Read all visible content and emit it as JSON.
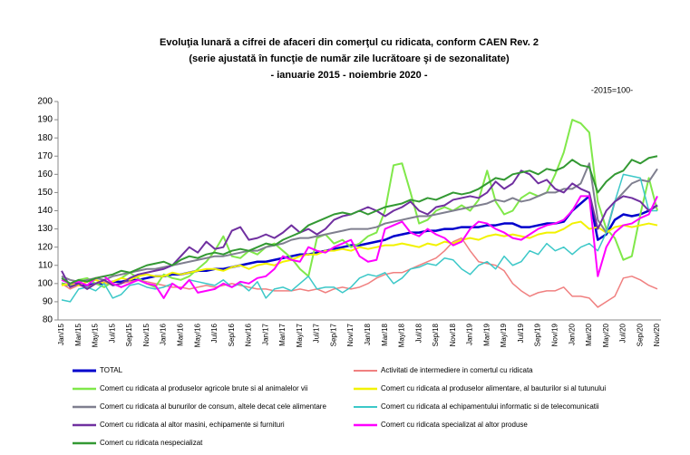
{
  "chart_data": {
    "type": "line",
    "title": [
      "Evoluţia lunară a cifrei de afaceri din comerţul cu ridicata,  conform CAEN Rev. 2",
      "(serie ajustată în funcţie de număr zile lucrătoare şi de sezonalitate)",
      "- ianuarie 2015 - noiembrie  2020  -"
    ],
    "note": "-2015=100-",
    "categories": [
      "Jan/15",
      null,
      "Mar/15",
      null,
      "May/15",
      null,
      "Jul/15",
      null,
      "Sep/15",
      null,
      "Nov/15",
      null,
      "Jan/16",
      null,
      "Mar/16",
      null,
      "May/16",
      null,
      "Jul/16",
      null,
      "Sep/16",
      null,
      "Nov/16",
      null,
      "Jan/17",
      null,
      "Mar/17",
      null,
      "May/17",
      null,
      "Jul/17",
      null,
      "Sep/17",
      null,
      "Nov/17",
      null,
      "Jan/18",
      null,
      "Mar/18",
      null,
      "May/18",
      null,
      "Jul/18",
      null,
      "Sep/18",
      null,
      "Nov/18",
      null,
      "Jan/19",
      null,
      "Mar/19",
      null,
      "May/19",
      null,
      "Jul/19",
      null,
      "Sep/19",
      null,
      "Nov/19",
      null,
      "Jan/20",
      null,
      "Mar/20",
      null,
      "May/20",
      null,
      "Jul/20",
      null,
      "Sep/20",
      null,
      "Nov/20"
    ],
    "ylim": [
      80,
      200
    ],
    "yticks": [
      80,
      90,
      100,
      110,
      120,
      130,
      140,
      150,
      160,
      170,
      180,
      190,
      200
    ],
    "series": [
      {
        "name": "TOTAL",
        "color": "#0000cc",
        "width": 2.5,
        "values": [
          100,
          99,
          100,
          99,
          100,
          100,
          101,
          101,
          102,
          102,
          103,
          104,
          104,
          105,
          105,
          106,
          107,
          107,
          108,
          108,
          109,
          110,
          111,
          112,
          112,
          113,
          114,
          115,
          116,
          116,
          117,
          118,
          119,
          120,
          121,
          121,
          122,
          123,
          124,
          126,
          127,
          128,
          128,
          129,
          129,
          130,
          130,
          131,
          131,
          131,
          132,
          132,
          133,
          133,
          131,
          131,
          132,
          133,
          133,
          134,
          140,
          144,
          148,
          124,
          127,
          135,
          138,
          137,
          138,
          140,
          143
        ]
      },
      {
        "name": "Activitati de intermediere in comertul cu ridicata",
        "color": "#f08080",
        "width": 1.5,
        "values": [
          100,
          97,
          99,
          98,
          100,
          101,
          99,
          100,
          101,
          102,
          101,
          100,
          99,
          98,
          98,
          97,
          98,
          99,
          98,
          99,
          100,
          99,
          98,
          97,
          97,
          96,
          96,
          96,
          97,
          96,
          97,
          95,
          97,
          98,
          97,
          98,
          100,
          103,
          105,
          106,
          106,
          108,
          110,
          112,
          114,
          118,
          123,
          125,
          118,
          112,
          111,
          110,
          107,
          100,
          96,
          93,
          95,
          96,
          96,
          98,
          93,
          93,
          92,
          87,
          90,
          93,
          103,
          104,
          102,
          99,
          97
        ]
      },
      {
        "name": "Comert cu ridicata al produselor agricole brute si al animalelor vii",
        "color": "#80e84a",
        "width": 2,
        "values": [
          100,
          99,
          102,
          103,
          100,
          98,
          101,
          103,
          106,
          103,
          100,
          98,
          105,
          103,
          102,
          104,
          108,
          112,
          118,
          126,
          115,
          114,
          118,
          116,
          120,
          122,
          118,
          114,
          108,
          104,
          125,
          127,
          122,
          124,
          120,
          122,
          126,
          128,
          140,
          165,
          166,
          150,
          133,
          135,
          140,
          142,
          140,
          143,
          140,
          146,
          162,
          145,
          138,
          140,
          147,
          150,
          148,
          150,
          160,
          172,
          190,
          188,
          183,
          145,
          130,
          125,
          113,
          115,
          138,
          158,
          140
        ]
      },
      {
        "name": "Comert cu ridicata al produselor alimentare, al bauturilor si al tutunului",
        "color": "#f2f200",
        "width": 2,
        "values": [
          99,
          100,
          99,
          101,
          102,
          100,
          101,
          103,
          102,
          104,
          105,
          104,
          104,
          106,
          105,
          106,
          107,
          108,
          108,
          107,
          109,
          110,
          108,
          110,
          111,
          110,
          112,
          113,
          115,
          116,
          116,
          118,
          118,
          119,
          118,
          120,
          119,
          120,
          121,
          121,
          122,
          121,
          120,
          122,
          121,
          123,
          122,
          124,
          125,
          124,
          126,
          127,
          126,
          127,
          126,
          125,
          127,
          128,
          128,
          130,
          133,
          134,
          130,
          131,
          128,
          131,
          132,
          131,
          132,
          133,
          132
        ]
      },
      {
        "name": "Comert cu ridicata al bunurilor de consum, altele decat cele alimentare",
        "color": "#7f7f8f",
        "width": 2,
        "values": [
          104,
          102,
          101,
          102,
          103,
          102,
          104,
          105,
          106,
          107,
          108,
          108,
          109,
          110,
          111,
          112,
          113,
          114,
          115,
          115,
          116,
          117,
          118,
          118,
          120,
          121,
          122,
          124,
          125,
          125,
          126,
          127,
          128,
          129,
          130,
          130,
          130,
          131,
          133,
          134,
          135,
          136,
          137,
          137,
          138,
          139,
          140,
          141,
          142,
          143,
          144,
          146,
          145,
          147,
          145,
          146,
          148,
          150,
          150,
          152,
          152,
          155,
          166,
          135,
          128,
          145,
          150,
          155,
          157,
          156,
          163
        ]
      },
      {
        "name": "Comert cu ridicata al echipamentului informatic si de telecomunicatii",
        "color": "#3cc8c8",
        "width": 1.5,
        "values": [
          91,
          90,
          97,
          98,
          96,
          100,
          92,
          94,
          99,
          100,
          98,
          97,
          98,
          100,
          97,
          102,
          101,
          100,
          99,
          102,
          98,
          100,
          96,
          101,
          92,
          97,
          98,
          96,
          100,
          104,
          97,
          98,
          98,
          95,
          98,
          103,
          105,
          104,
          106,
          100,
          103,
          108,
          109,
          111,
          110,
          114,
          113,
          108,
          105,
          110,
          112,
          108,
          115,
          110,
          112,
          118,
          116,
          122,
          118,
          120,
          116,
          120,
          122,
          118,
          128,
          145,
          160,
          159,
          158,
          140,
          140
        ]
      },
      {
        "name": "Comert cu ridicata al altor masini, echipamente si furnituri",
        "color": "#7030a0",
        "width": 2,
        "values": [
          107,
          98,
          100,
          97,
          100,
          102,
          99,
          100,
          103,
          105,
          106,
          107,
          108,
          110,
          115,
          120,
          117,
          123,
          119,
          120,
          129,
          131,
          124,
          125,
          127,
          125,
          128,
          132,
          128,
          130,
          127,
          130,
          135,
          137,
          138,
          140,
          142,
          140,
          137,
          140,
          142,
          145,
          140,
          138,
          142,
          143,
          146,
          147,
          148,
          147,
          150,
          156,
          152,
          155,
          162,
          160,
          155,
          157,
          152,
          150,
          155,
          152,
          150,
          130,
          140,
          145,
          148,
          147,
          145,
          140,
          143
        ]
      },
      {
        "name": "Comert cu ridicata specializat al altor produse",
        "color": "#ff00ff",
        "width": 2,
        "values": [
          102,
          100,
          101,
          99,
          103,
          104,
          100,
          98,
          100,
          102,
          100,
          99,
          92,
          100,
          97,
          102,
          95,
          96,
          97,
          100,
          98,
          101,
          100,
          103,
          104,
          108,
          115,
          113,
          112,
          120,
          118,
          117,
          120,
          122,
          124,
          115,
          112,
          113,
          130,
          132,
          134,
          128,
          126,
          130,
          127,
          125,
          121,
          123,
          130,
          134,
          133,
          130,
          128,
          125,
          124,
          127,
          130,
          132,
          133,
          135,
          140,
          148,
          148,
          104,
          120,
          128,
          132,
          133,
          136,
          138,
          148
        ]
      },
      {
        "name": "Comert cu ridicata nespecializat",
        "color": "#339933",
        "width": 2,
        "values": [
          103,
          100,
          102,
          101,
          103,
          104,
          105,
          107,
          106,
          108,
          110,
          111,
          112,
          110,
          113,
          115,
          114,
          116,
          117,
          116,
          118,
          119,
          118,
          120,
          122,
          121,
          124,
          126,
          128,
          132,
          134,
          136,
          138,
          139,
          138,
          140,
          138,
          140,
          142,
          143,
          144,
          146,
          145,
          147,
          146,
          148,
          150,
          149,
          150,
          152,
          155,
          158,
          157,
          160,
          161,
          162,
          160,
          163,
          162,
          164,
          168,
          165,
          164,
          150,
          156,
          160,
          162,
          168,
          166,
          169,
          170
        ]
      }
    ]
  }
}
